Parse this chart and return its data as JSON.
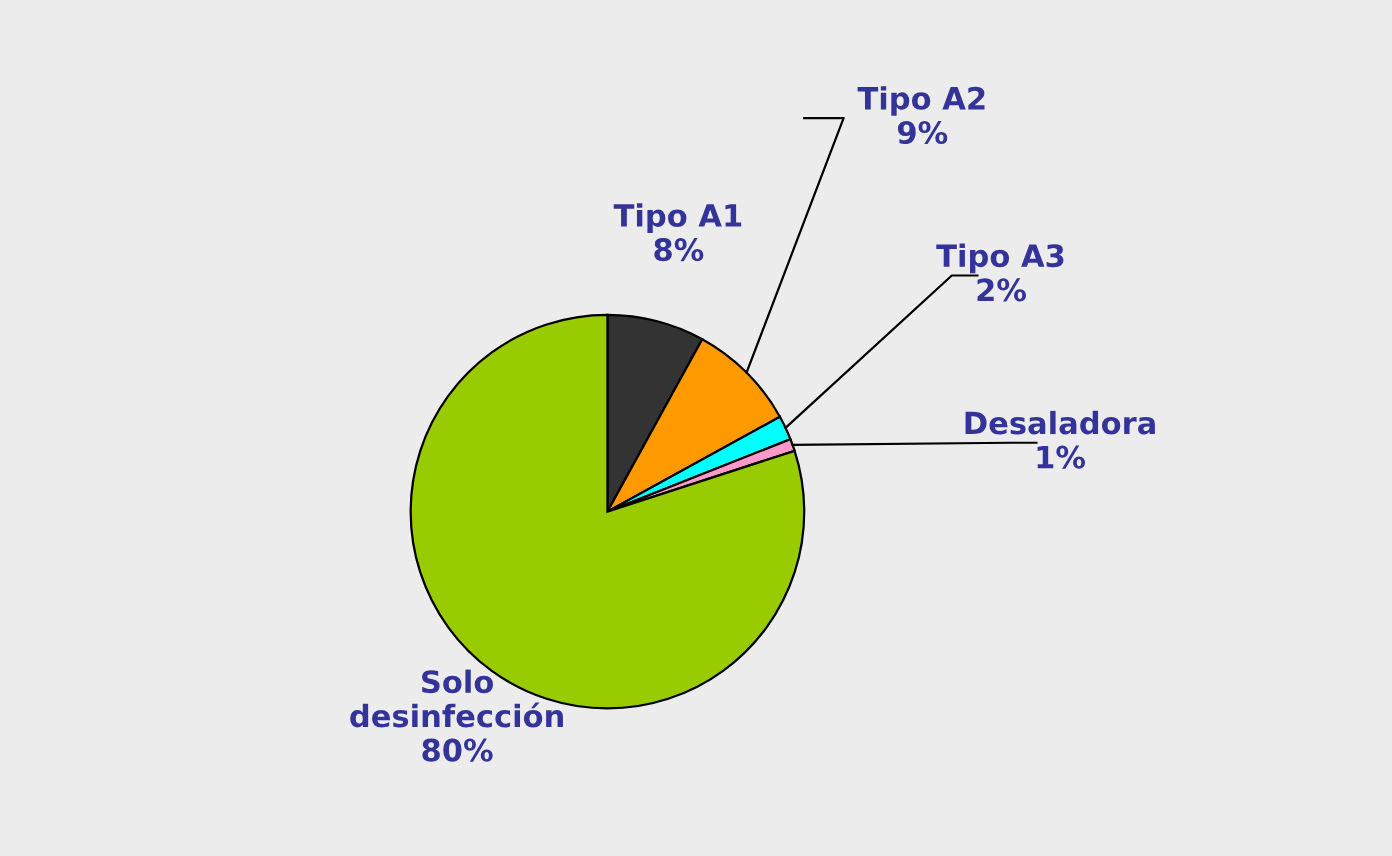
{
  "chart_data": {
    "type": "pie",
    "categories": [
      "Tipo A1",
      "Tipo A2",
      "Tipo A3",
      "Desaladora",
      "Solo\ndesinfección"
    ],
    "values": [
      8,
      9,
      2,
      1,
      80
    ],
    "value_labels": [
      "8%",
      "9%",
      "2%",
      "1%",
      "80%"
    ],
    "colors": [
      "#333333",
      "#ff9900",
      "#00ffff",
      "#ff99cc",
      "#99cc00"
    ],
    "legend": false
  }
}
